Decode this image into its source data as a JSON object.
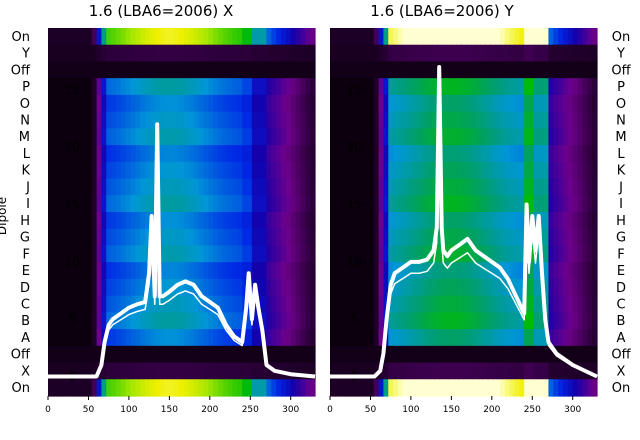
{
  "chart_data": [
    {
      "type": "heatmap",
      "title": "1.6 (LBA6=2006) X",
      "ylabel": "Dipole",
      "row_labels": [
        "On",
        "Y",
        "Off",
        "P",
        "O",
        "N",
        "M",
        "L",
        "K",
        "J",
        "I",
        "H",
        "G",
        "F",
        "E",
        "D",
        "C",
        "B",
        "A",
        "Off",
        "X",
        "On"
      ],
      "row_labels_side": "left",
      "x_ticks": [
        0,
        50,
        100,
        150,
        200,
        250,
        300
      ],
      "x_range": [
        0,
        330
      ],
      "overlay_yticks": [
        0,
        5,
        10,
        15,
        20,
        25
      ],
      "overlay_yrange": [
        -1.7,
        30.4
      ],
      "overlay_line": {
        "x": [
          0,
          60,
          66,
          70,
          75,
          80,
          90,
          100,
          110,
          120,
          125,
          128,
          132,
          135,
          138,
          142,
          150,
          160,
          170,
          180,
          190,
          200,
          210,
          220,
          230,
          240,
          245,
          248,
          252,
          256,
          260,
          265,
          270,
          280,
          300,
          330
        ],
        "y": [
          0,
          0,
          1,
          3,
          4.5,
          5,
          5.5,
          6,
          6.3,
          6.5,
          9,
          14,
          7,
          22,
          7,
          7,
          7.4,
          8,
          8.3,
          8,
          7,
          6.5,
          6,
          4.5,
          3.5,
          3,
          6,
          9,
          5,
          8,
          6,
          4,
          1,
          0.5,
          0.2,
          0
        ]
      }
    },
    {
      "type": "heatmap",
      "title": "1.6 (LBA6=2006) Y",
      "row_labels": [
        "On",
        "Y",
        "Off",
        "P",
        "O",
        "N",
        "M",
        "L",
        "K",
        "J",
        "I",
        "H",
        "G",
        "F",
        "E",
        "D",
        "C",
        "B",
        "A",
        "Off",
        "X",
        "On"
      ],
      "row_labels_side": "right",
      "x_ticks": [
        0,
        50,
        100,
        150,
        200,
        250,
        300
      ],
      "x_range": [
        0,
        330
      ],
      "overlay_yticks": [
        0,
        5,
        10,
        15,
        20,
        25
      ],
      "overlay_yrange": [
        -1.7,
        30.4
      ],
      "overlay_line": {
        "x": [
          0,
          55,
          62,
          66,
          70,
          75,
          80,
          90,
          100,
          110,
          120,
          128,
          132,
          135,
          138,
          140,
          145,
          150,
          160,
          170,
          180,
          190,
          200,
          210,
          220,
          230,
          240,
          243,
          246,
          250,
          254,
          258,
          262,
          266,
          270,
          280,
          300,
          330
        ],
        "y": [
          0,
          0,
          0.5,
          2,
          5,
          8,
          9,
          9.5,
          10,
          10,
          10.2,
          11,
          13,
          27,
          13,
          11,
          10.5,
          11,
          11.5,
          12,
          11,
          10.5,
          10,
          9.5,
          8.5,
          7,
          5.5,
          15,
          10,
          14,
          11,
          14,
          9,
          5,
          3,
          2,
          1,
          0
        ]
      }
    }
  ]
}
